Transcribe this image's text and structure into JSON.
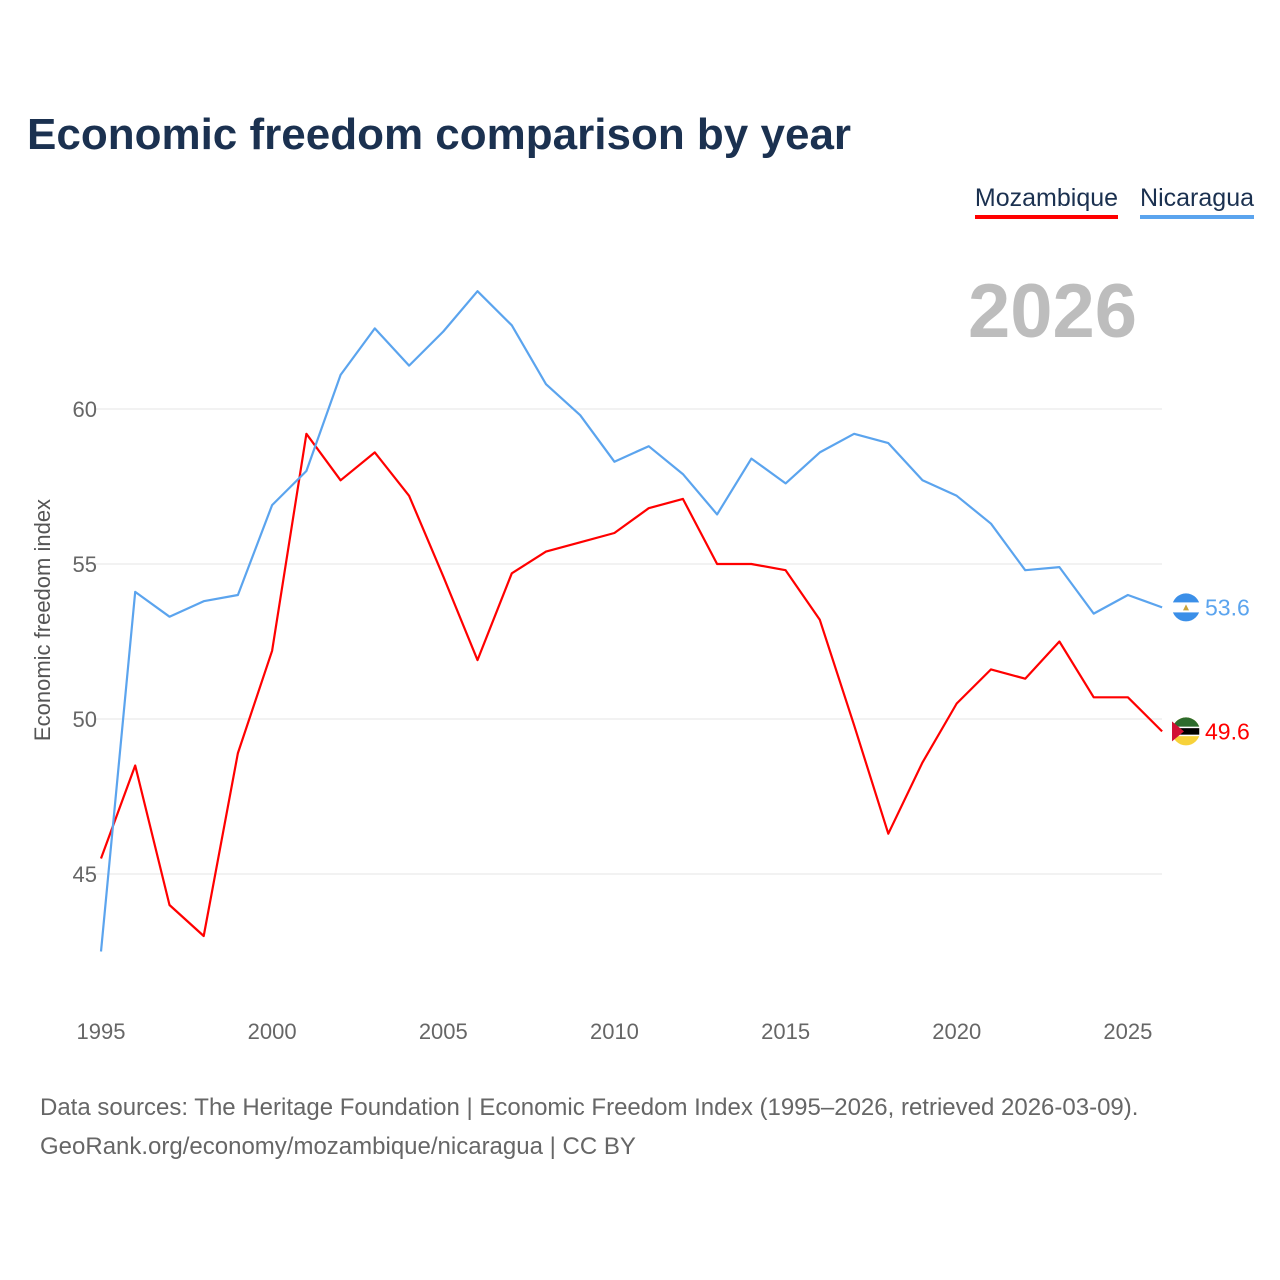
{
  "chart_data": {
    "type": "line",
    "title": "Economic freedom comparison by year",
    "xlabel": "",
    "ylabel": "Economic freedom index",
    "current_year": "2026",
    "x": [
      1995,
      1996,
      1997,
      1998,
      1999,
      2000,
      2001,
      2002,
      2003,
      2004,
      2005,
      2006,
      2007,
      2008,
      2009,
      2010,
      2011,
      2012,
      2013,
      2014,
      2015,
      2016,
      2017,
      2018,
      2019,
      2020,
      2021,
      2022,
      2023,
      2024,
      2025,
      2026
    ],
    "x_ticks": [
      "1995",
      "2000",
      "2005",
      "2010",
      "2015",
      "2020",
      "2025"
    ],
    "y_ticks": [
      "45",
      "50",
      "55",
      "60"
    ],
    "ylim": [
      41.5,
      65
    ],
    "grid": true,
    "legend_position": "top-right",
    "series": [
      {
        "name": "Mozambique",
        "color": "#ff0000",
        "end_label": "49.6",
        "values": [
          45.5,
          48.5,
          44.0,
          43.0,
          48.9,
          52.2,
          59.2,
          57.7,
          58.6,
          57.2,
          54.6,
          51.9,
          54.7,
          55.4,
          55.7,
          56.0,
          56.8,
          57.1,
          55.0,
          55.0,
          54.8,
          53.2,
          49.8,
          46.3,
          48.6,
          50.5,
          51.6,
          51.3,
          52.5,
          50.7,
          50.7,
          49.6
        ]
      },
      {
        "name": "Nicaragua",
        "color": "#5ba4ee",
        "end_label": "53.6",
        "values": [
          42.5,
          54.1,
          53.3,
          53.8,
          54.0,
          56.9,
          58.0,
          61.1,
          62.6,
          61.4,
          62.5,
          63.8,
          62.7,
          60.8,
          59.8,
          58.3,
          58.8,
          57.9,
          56.6,
          58.4,
          57.6,
          58.6,
          59.2,
          58.9,
          57.7,
          57.2,
          56.3,
          54.8,
          54.9,
          53.4,
          54.0,
          53.6
        ]
      }
    ]
  },
  "source_line1": "Data sources: The Heritage Foundation | Economic Freedom Index (1995–2026, retrieved 2026-03-09).",
  "source_line2": "GeoRank.org/economy/mozambique/nicaragua | CC BY"
}
